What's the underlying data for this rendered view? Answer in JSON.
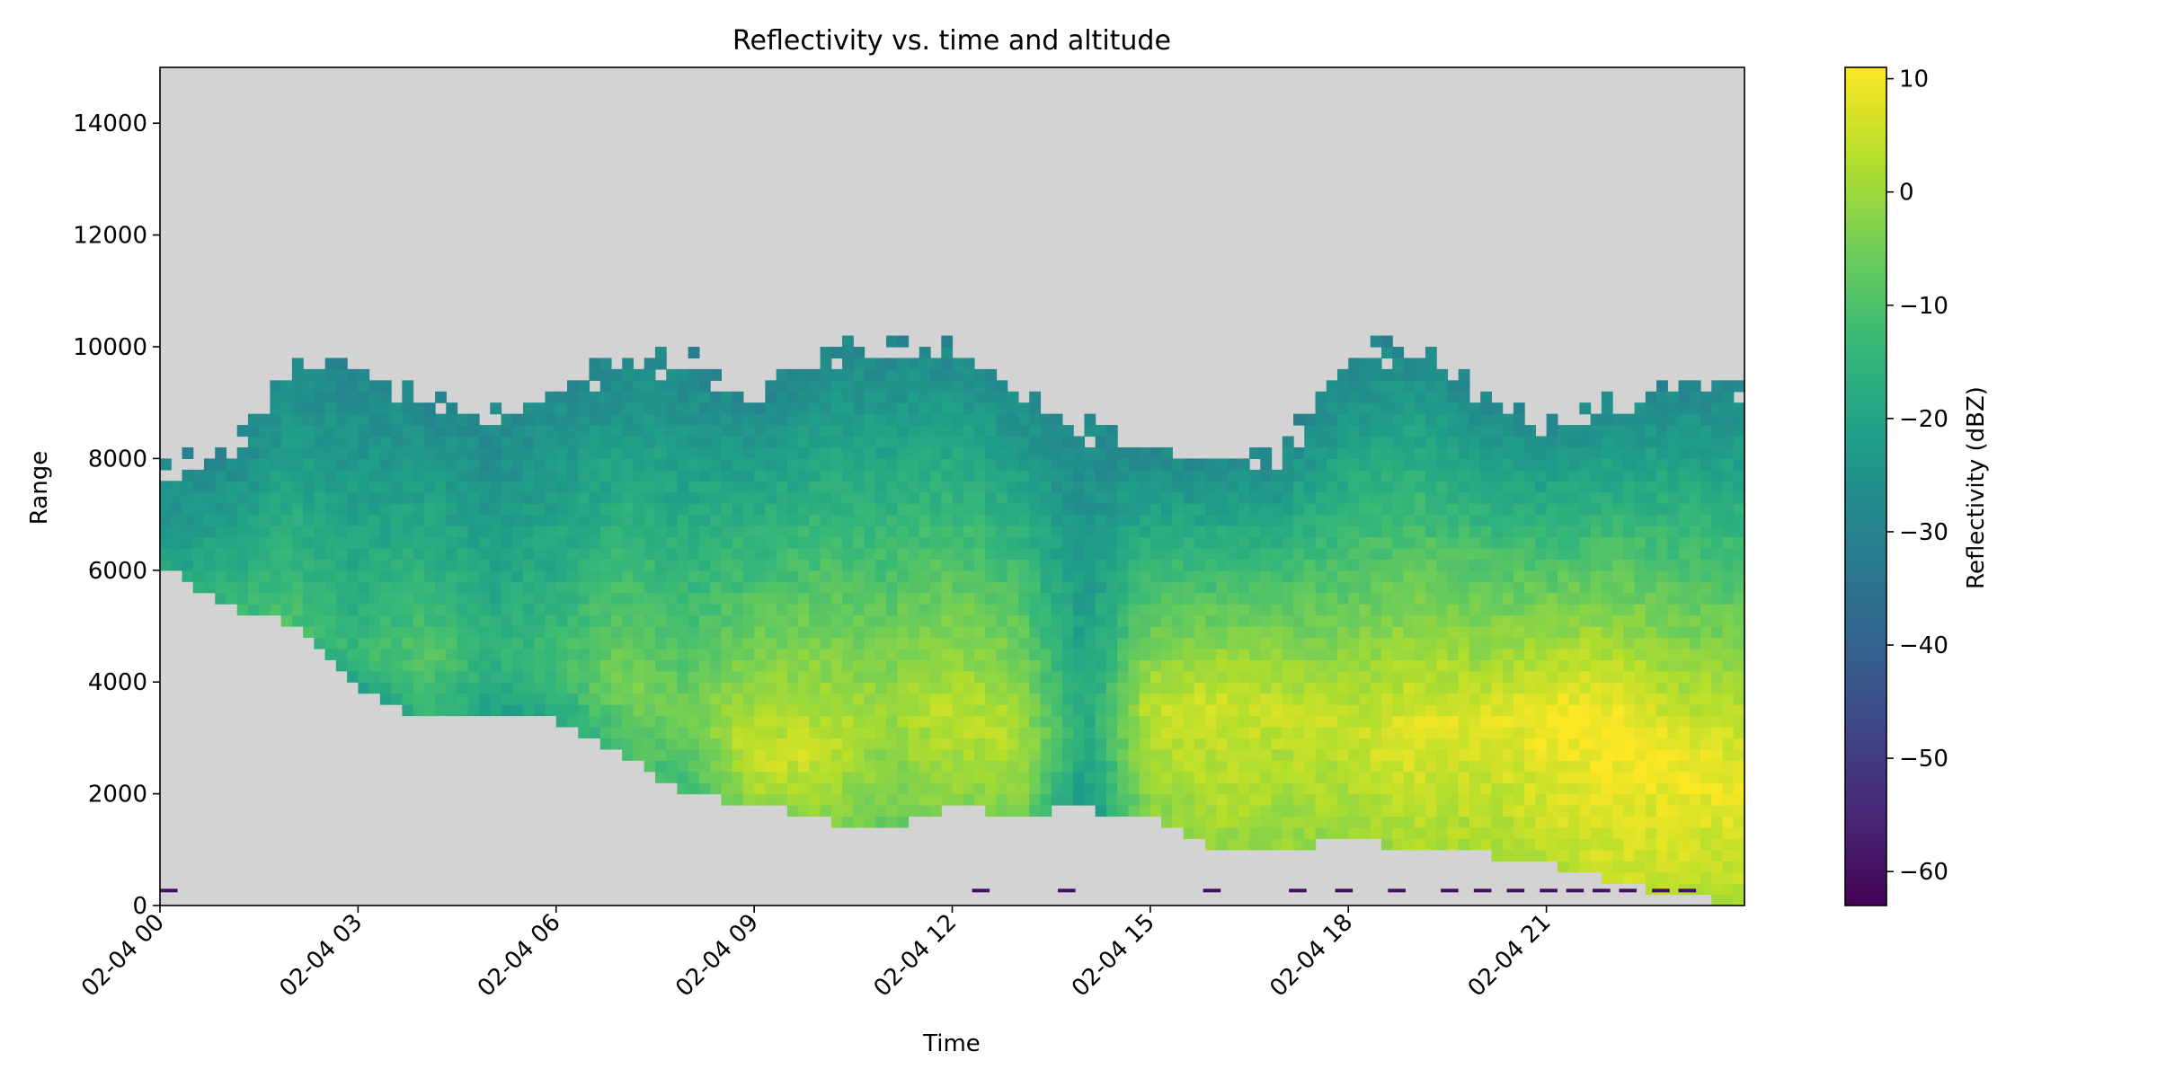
{
  "chart_data": {
    "type": "heatmap",
    "title": "Reflectivity vs. time and altitude",
    "xlabel": "Time",
    "ylabel": "Range",
    "x_range": [
      "2025-02-04T00:00",
      "2025-02-04T23:59"
    ],
    "y_range": [
      0,
      15000
    ],
    "x_ticks": [
      "02-04 00",
      "02-04 03",
      "02-04 06",
      "02-04 09",
      "02-04 12",
      "02-04 15",
      "02-04 18",
      "02-04 21"
    ],
    "x_tick_hours": [
      0,
      3,
      6,
      9,
      12,
      15,
      18,
      21
    ],
    "y_ticks": [
      0,
      2000,
      4000,
      6000,
      8000,
      10000,
      12000,
      14000
    ],
    "y_tick_labels": [
      "0",
      "2000",
      "4000",
      "6000",
      "8000",
      "10000",
      "12000",
      "14000"
    ],
    "colormap": "viridis",
    "missing_color": "#d3d3d3",
    "colorbar": {
      "label": "Reflectivity (dBZ)",
      "range": [
        -63,
        11
      ],
      "ticks": [
        10,
        0,
        -10,
        -20,
        -30,
        -40,
        -50,
        -60
      ],
      "tick_labels": [
        "10",
        "0",
        "−10",
        "−20",
        "−30",
        "−40",
        "−50",
        "−60"
      ]
    },
    "profile_hours": [
      0,
      1,
      2,
      3,
      4,
      5,
      6,
      7,
      8,
      9,
      10,
      11,
      12,
      13,
      14,
      15,
      16,
      17,
      18,
      19,
      20,
      21,
      22,
      23,
      24
    ],
    "cloud_base_m": [
      6300,
      5500,
      5200,
      4000,
      3500,
      3500,
      3500,
      2900,
      2100,
      2000,
      1700,
      1500,
      1900,
      1800,
      1900,
      1700,
      1200,
      1100,
      1400,
      1100,
      1100,
      900,
      600,
      300,
      200
    ],
    "cloud_top_m": [
      7700,
      8000,
      9600,
      9500,
      9000,
      8600,
      9300,
      9800,
      9700,
      9000,
      9900,
      10000,
      10000,
      9200,
      8500,
      8200,
      8000,
      8100,
      9700,
      10000,
      9200,
      8500,
      9000,
      9200,
      9300
    ],
    "peak_dbz": [
      -20,
      -12,
      -10,
      -14,
      -8,
      -15,
      -12,
      -4,
      -6,
      6,
      5,
      0,
      4,
      3,
      -18,
      4,
      6,
      5,
      5,
      8,
      7,
      10,
      11,
      10,
      9
    ],
    "peak_altitude_m": [
      6000,
      5000,
      5000,
      4500,
      4300,
      4500,
      4300,
      4000,
      3500,
      2600,
      2700,
      3500,
      3500,
      3000,
      3000,
      3500,
      3600,
      3600,
      3000,
      3200,
      3300,
      3500,
      3200,
      2500,
      2300
    ],
    "near_surface_echo_hours": [
      0.0,
      12.3,
      13.6,
      15.8,
      17.1,
      17.8,
      18.6,
      19.4,
      19.9,
      20.4,
      20.9,
      21.3,
      21.7,
      22.1,
      22.6,
      23.0
    ],
    "near_surface_echo_dbz": -60
  }
}
